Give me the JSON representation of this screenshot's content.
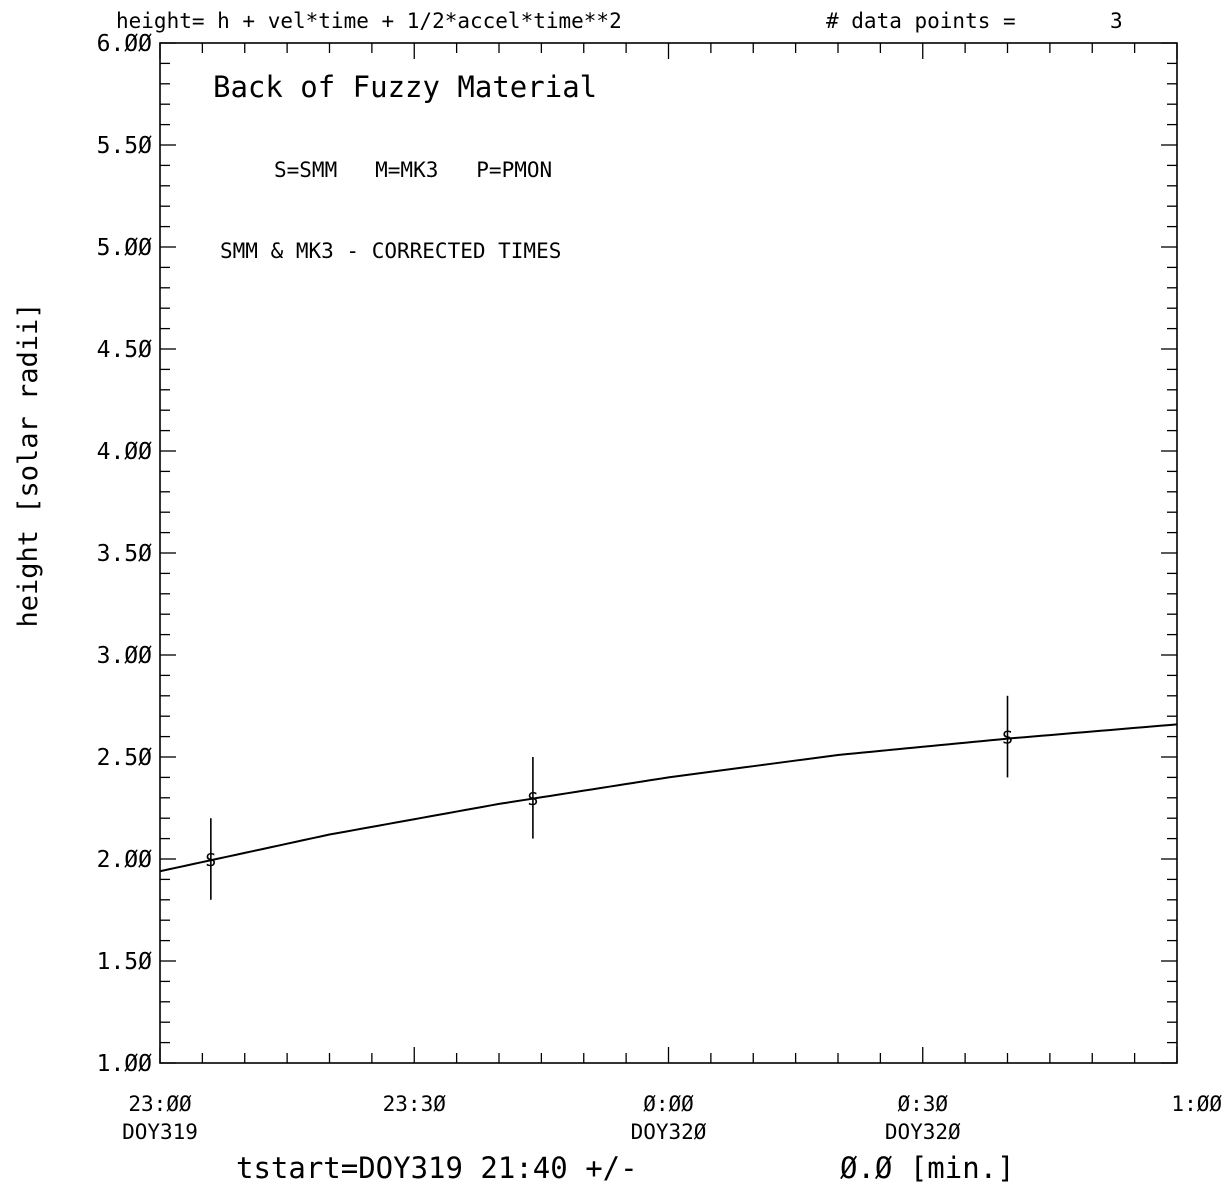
{
  "header": {
    "formula": "height= h + vel*time + 1/2*accel*time**2",
    "points_label": "# data points =",
    "points_count": "3"
  },
  "annotations": {
    "title": "Back of Fuzzy Material",
    "key": "S=SMM   M=MK3   P=PMON",
    "note": "SMM & MK3 - CORRECTED TIMES"
  },
  "axes": {
    "ylabel": "height [solar radii]",
    "xlabel_left": "tstart=DOY319 21:40 +/-",
    "xlabel_right": "Ø.Ø [min.]"
  },
  "chart_data": {
    "type": "scatter",
    "title": "Back of Fuzzy Material",
    "xlabel": "tstart=DOY319 21:40 +/- Ø.Ø [min.]",
    "ylabel": "height [solar radii]",
    "x_units": "minutes since 23:00 DOY319",
    "xlim": [
      0,
      120
    ],
    "ylim": [
      1.0,
      6.0
    ],
    "yticks": [
      "1.ØØ",
      "1.5Ø",
      "2.ØØ",
      "2.5Ø",
      "3.ØØ",
      "3.5Ø",
      "4.ØØ",
      "4.5Ø",
      "5.ØØ",
      "5.5Ø",
      "6.ØØ"
    ],
    "xticks": [
      {
        "time": "23:ØØ",
        "day": "DOY319"
      },
      {
        "time": "23:3Ø",
        "day": ""
      },
      {
        "time": "Ø:ØØ",
        "day": "DOY32Ø"
      },
      {
        "time": "Ø:3Ø",
        "day": "DOY32Ø"
      },
      {
        "time": "1:ØØ",
        "day": ""
      }
    ],
    "series": [
      {
        "name": "SMM",
        "marker": "S",
        "x": [
          6,
          44,
          100
        ],
        "y": [
          2.0,
          2.3,
          2.6
        ],
        "yerr": [
          0.2,
          0.2,
          0.2
        ]
      }
    ],
    "fit": {
      "x": [
        0,
        20,
        40,
        60,
        80,
        100,
        120
      ],
      "y": [
        1.94,
        2.12,
        2.27,
        2.4,
        2.51,
        2.59,
        2.66
      ]
    }
  }
}
